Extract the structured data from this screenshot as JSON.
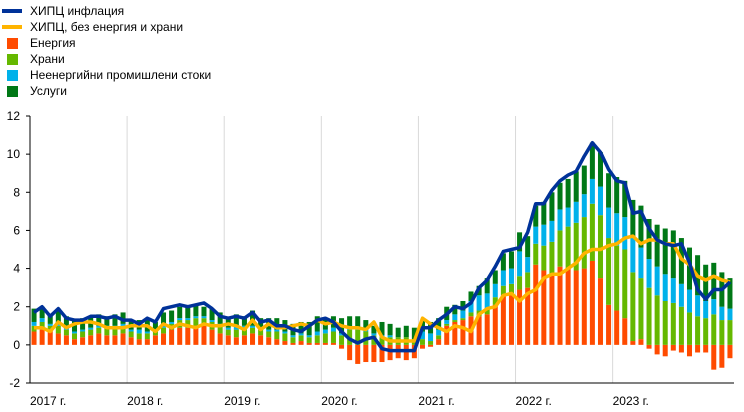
{
  "chart_data": {
    "type": "bar",
    "stacked_bars": true,
    "legend_position": "top-left",
    "grid": {
      "vertical": true,
      "horizontal": false
    },
    "ylim": [
      -2,
      12
    ],
    "yticks": [
      "-2",
      "0",
      "2",
      "4",
      "6",
      "8",
      "10",
      "12"
    ],
    "yticks_values": [
      -2,
      0,
      2,
      4,
      6,
      8,
      10,
      12
    ],
    "x_start": "2017-01",
    "x_end": "2023-12",
    "xticks": [
      {
        "label": "2017 г.",
        "month_index": 0
      },
      {
        "label": "2018 г.",
        "month_index": 12
      },
      {
        "label": "2019 г.",
        "month_index": 24
      },
      {
        "label": "2020 г.",
        "month_index": 36
      },
      {
        "label": "2021 г.",
        "month_index": 48
      },
      {
        "label": "2022 г.",
        "month_index": 60
      },
      {
        "label": "2023 г.",
        "month_index": 72
      }
    ],
    "legend": [
      {
        "label": "ХИПЦ инфлация",
        "kind": "line",
        "color": "#003299"
      },
      {
        "label": "ХИПЦ, без енергия и храни",
        "kind": "line",
        "color": "#FFB400"
      },
      {
        "label": "Енергия",
        "kind": "bar",
        "color": "#FF4B00"
      },
      {
        "label": "Храни",
        "kind": "bar",
        "color": "#65B800"
      },
      {
        "label": "Неенергийни промишлени стоки",
        "kind": "bar",
        "color": "#00B1EA"
      },
      {
        "label": "Услуги",
        "kind": "bar",
        "color": "#007816"
      }
    ],
    "bar_series": [
      {
        "name": "Енергия",
        "color": "#FF4B00",
        "values": [
          0.7,
          0.8,
          0.7,
          0.6,
          0.5,
          0.3,
          0.4,
          0.5,
          0.6,
          0.5,
          0.5,
          0.6,
          0.4,
          0.3,
          0.3,
          0.5,
          0.6,
          0.8,
          0.9,
          0.9,
          1.0,
          1.0,
          0.8,
          0.6,
          0.5,
          0.4,
          0.5,
          0.6,
          0.5,
          0.4,
          0.3,
          0.2,
          0.1,
          0.2,
          0.1,
          0.1,
          0.1,
          0.1,
          -0.2,
          -0.8,
          -1.0,
          -0.9,
          -0.9,
          -0.9,
          -0.8,
          -0.7,
          -0.8,
          -0.7,
          -0.2,
          -0.1,
          0.3,
          1.0,
          1.2,
          1.3,
          1.5,
          1.5,
          1.6,
          2.1,
          2.6,
          2.6,
          2.9,
          3.0,
          4.2,
          3.9,
          3.7,
          4.1,
          4.0,
          3.9,
          4.0,
          4.4,
          3.5,
          2.1,
          1.8,
          1.4,
          0.2,
          0.3,
          -0.2,
          -0.5,
          -0.6,
          -0.3,
          -0.4,
          -0.6,
          -0.4,
          -0.4,
          -1.3,
          -1.2,
          -0.7
        ]
      },
      {
        "name": "Храни",
        "color": "#65B800",
        "values": [
          0.3,
          0.4,
          0.3,
          0.4,
          0.3,
          0.3,
          0.3,
          0.3,
          0.3,
          0.4,
          0.4,
          0.4,
          0.3,
          0.3,
          0.3,
          0.2,
          0.3,
          0.3,
          0.4,
          0.4,
          0.4,
          0.4,
          0.4,
          0.4,
          0.3,
          0.4,
          0.4,
          0.3,
          0.3,
          0.3,
          0.4,
          0.4,
          0.3,
          0.3,
          0.3,
          0.4,
          0.5,
          0.6,
          0.5,
          0.8,
          0.8,
          0.7,
          0.5,
          0.4,
          0.4,
          0.4,
          0.4,
          0.3,
          0.3,
          0.2,
          0.2,
          0.1,
          0.1,
          0.1,
          0.2,
          0.3,
          0.3,
          0.4,
          0.5,
          0.6,
          0.7,
          0.8,
          1.1,
          1.3,
          1.7,
          1.9,
          2.2,
          2.5,
          2.7,
          3.0,
          3.3,
          3.5,
          3.4,
          3.6,
          3.6,
          3.2,
          3.0,
          2.6,
          2.3,
          2.2,
          2.0,
          1.7,
          1.5,
          1.4,
          1.6,
          1.3,
          1.3
        ]
      },
      {
        "name": "Неенергийни промишлени стоки",
        "color": "#00B1EA",
        "values": [
          0.2,
          0.2,
          0.1,
          0.1,
          0.1,
          0.1,
          0.1,
          0.1,
          0.1,
          0.1,
          0.1,
          0.1,
          0.1,
          0.2,
          0.1,
          0.1,
          0.1,
          0.1,
          0.1,
          0.1,
          0.1,
          0.1,
          0.1,
          0.1,
          0.1,
          0.2,
          0.1,
          0.1,
          0.1,
          0.1,
          0.1,
          0.1,
          0.1,
          0.1,
          0.1,
          0.2,
          0.2,
          0.2,
          0.1,
          0.1,
          0.1,
          0.1,
          0.1,
          0.1,
          0.1,
          0.0,
          0.0,
          0.0,
          0.4,
          0.4,
          0.3,
          0.2,
          0.3,
          0.4,
          0.6,
          0.8,
          0.8,
          0.7,
          0.8,
          0.8,
          1.3,
          0.8,
          0.9,
          1.1,
          1.1,
          1.1,
          1.0,
          1.1,
          1.2,
          1.3,
          1.5,
          1.6,
          1.7,
          1.7,
          1.8,
          1.6,
          1.5,
          1.5,
          1.4,
          1.3,
          1.2,
          1.2,
          1.1,
          0.9,
          0.8,
          0.7,
          0.6
        ]
      },
      {
        "name": "Услуги",
        "color": "#007816",
        "values": [
          0.7,
          0.6,
          0.5,
          0.8,
          0.6,
          0.6,
          0.6,
          0.6,
          0.6,
          0.5,
          0.6,
          0.6,
          0.5,
          0.5,
          0.6,
          0.4,
          0.7,
          0.6,
          0.6,
          0.6,
          0.6,
          0.5,
          0.6,
          0.6,
          0.5,
          0.6,
          0.5,
          0.8,
          0.5,
          0.6,
          0.6,
          0.6,
          0.6,
          0.6,
          0.7,
          0.8,
          0.6,
          0.6,
          0.8,
          0.6,
          0.6,
          0.5,
          0.4,
          0.7,
          0.6,
          0.5,
          0.6,
          0.6,
          0.6,
          0.6,
          0.6,
          0.7,
          0.5,
          0.5,
          0.5,
          0.5,
          0.8,
          0.7,
          0.9,
          0.9,
          1.0,
          1.1,
          1.1,
          1.2,
          1.5,
          1.4,
          1.5,
          1.6,
          1.5,
          1.9,
          1.8,
          1.8,
          1.9,
          1.9,
          2.0,
          2.2,
          2.1,
          2.2,
          2.4,
          2.5,
          2.4,
          2.2,
          2.1,
          1.9,
          1.9,
          1.8,
          1.6
        ]
      }
    ],
    "line_series": [
      {
        "name": "ХИПЦ инфлация",
        "color": "#003299",
        "values": [
          1.7,
          2.0,
          1.5,
          1.9,
          1.4,
          1.3,
          1.3,
          1.5,
          1.5,
          1.4,
          1.5,
          1.3,
          1.3,
          1.1,
          1.4,
          1.2,
          1.9,
          2.0,
          2.1,
          2.0,
          2.1,
          2.2,
          1.9,
          1.5,
          1.4,
          1.5,
          1.4,
          1.7,
          1.2,
          1.3,
          1.0,
          1.0,
          0.8,
          0.7,
          1.0,
          1.3,
          1.4,
          1.2,
          0.7,
          0.3,
          0.1,
          0.3,
          0.4,
          -0.2,
          -0.3,
          -0.3,
          -0.3,
          -0.3,
          0.9,
          0.9,
          1.3,
          1.6,
          2.0,
          1.9,
          2.2,
          3.0,
          3.4,
          4.1,
          4.9,
          5.0,
          5.1,
          5.9,
          7.4,
          7.4,
          8.1,
          8.6,
          8.9,
          9.1,
          9.9,
          10.6,
          10.1,
          9.2,
          8.6,
          8.5,
          6.9,
          7.0,
          6.1,
          5.5,
          5.3,
          5.2,
          5.3,
          4.3,
          2.9,
          2.4,
          2.9,
          2.9,
          3.3
        ]
      },
      {
        "name": "ХИПЦ, без енергия и храни",
        "color": "#FFB400",
        "values": [
          0.9,
          0.9,
          0.7,
          1.2,
          0.9,
          1.1,
          1.2,
          1.2,
          1.1,
          0.9,
          0.9,
          0.9,
          1.0,
          1.0,
          1.0,
          0.7,
          1.1,
          0.9,
          1.1,
          1.0,
          0.9,
          1.1,
          1.0,
          1.0,
          1.1,
          1.0,
          0.8,
          1.3,
          0.8,
          1.1,
          0.9,
          0.9,
          1.0,
          1.1,
          1.0,
          1.3,
          1.1,
          1.2,
          1.0,
          0.9,
          0.9,
          0.8,
          1.2,
          0.4,
          0.2,
          0.2,
          0.2,
          0.2,
          1.4,
          1.1,
          0.9,
          0.7,
          1.0,
          0.9,
          0.7,
          1.6,
          1.9,
          2.0,
          2.6,
          2.7,
          2.3,
          2.7,
          2.9,
          3.5,
          3.7,
          3.7,
          4.0,
          4.3,
          4.8,
          5.0,
          5.0,
          5.2,
          5.3,
          5.6,
          5.7,
          5.3,
          5.5,
          5.5,
          5.3,
          5.3,
          4.5,
          4.2,
          3.6,
          3.4,
          3.6,
          3.4,
          3.3
        ]
      }
    ]
  }
}
